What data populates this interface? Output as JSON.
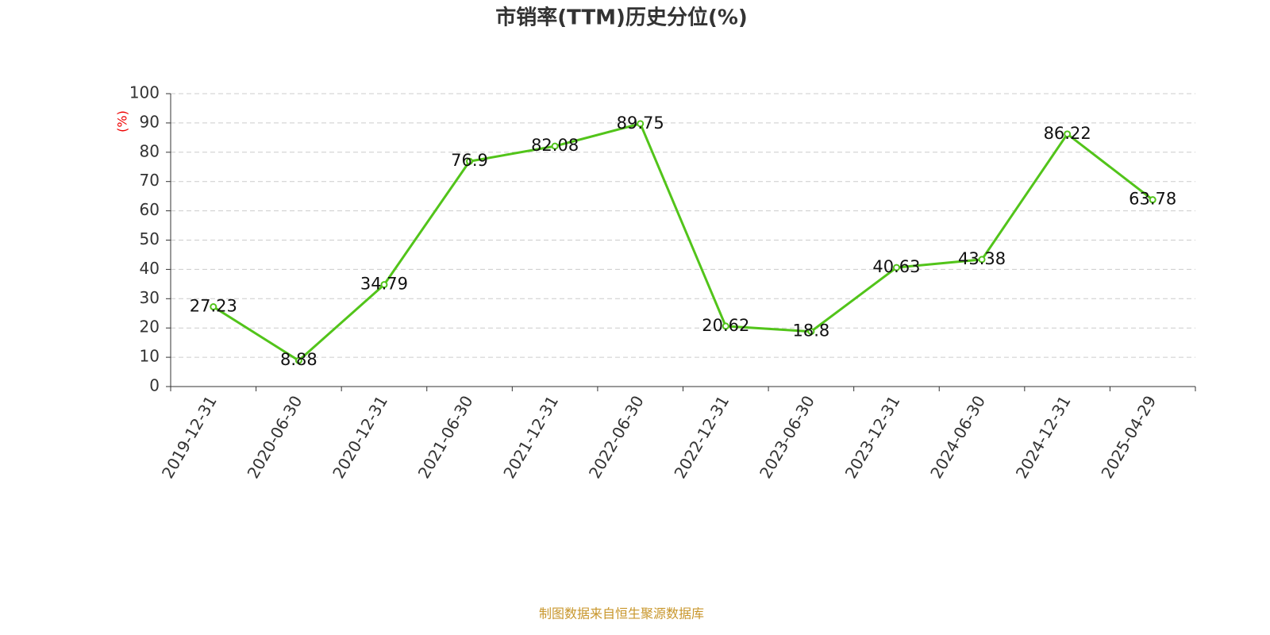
{
  "chart_data": {
    "type": "line",
    "title": "市销率(TTM)历史分位(%)",
    "y_label": "(%)",
    "source": "制图数据来自恒生聚源数据库",
    "categories": [
      "2019-12-31",
      "2020-06-30",
      "2020-12-31",
      "2021-06-30",
      "2021-12-31",
      "2022-06-30",
      "2022-12-31",
      "2023-06-30",
      "2023-12-31",
      "2024-06-30",
      "2024-12-31",
      "2025-04-29"
    ],
    "values": [
      27.23,
      8.88,
      34.79,
      76.9,
      82.08,
      89.75,
      20.62,
      18.8,
      40.63,
      43.38,
      86.22,
      63.78
    ],
    "color": "#52c41a",
    "ylim": [
      0,
      100
    ],
    "yticks": [
      0,
      10,
      20,
      30,
      40,
      50,
      60,
      70,
      80,
      90,
      100
    ],
    "grid": true
  }
}
